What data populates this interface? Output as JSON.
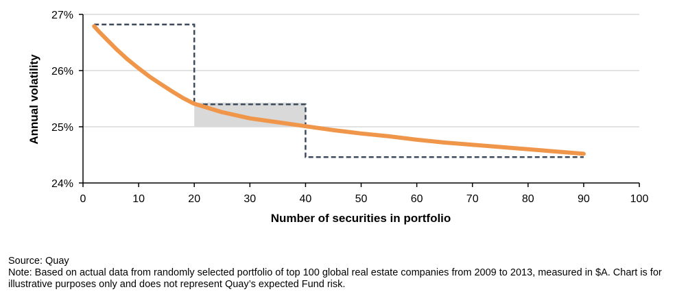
{
  "chart_data": {
    "type": "line",
    "title": "",
    "xlabel": "Number of securities in portfolio",
    "ylabel": "Annual volatility",
    "xlim": [
      0,
      100
    ],
    "ylim": [
      24,
      27
    ],
    "x_ticks": [
      "0",
      "10",
      "20",
      "30",
      "40",
      "50",
      "60",
      "70",
      "80",
      "90",
      "100"
    ],
    "y_ticks": [
      "24%",
      "25%",
      "26%",
      "27%"
    ],
    "grid": "horizontal",
    "colors": {
      "curve": "#f0964a",
      "dashed": "#3d4a5c",
      "band": "#d9d9d9",
      "grid": "#d9d9d9",
      "axis": "#000000"
    },
    "series": [
      {
        "type": "line",
        "style": "solid",
        "x": [
          2,
          3,
          4,
          5,
          6,
          7,
          8,
          10,
          12,
          14,
          16,
          18,
          20,
          25,
          30,
          35,
          40,
          45,
          50,
          55,
          60,
          65,
          70,
          75,
          80,
          85,
          90
        ],
        "y": [
          26.79,
          26.68,
          26.58,
          26.48,
          26.38,
          26.29,
          26.2,
          26.04,
          25.89,
          25.76,
          25.63,
          25.51,
          25.41,
          25.26,
          25.15,
          25.08,
          25.01,
          24.94,
          24.88,
          24.83,
          24.77,
          24.72,
          24.68,
          24.64,
          24.6,
          24.56,
          24.52
        ]
      },
      {
        "type": "step",
        "style": "dashed",
        "x": [
          2,
          20,
          20,
          40,
          40,
          90
        ],
        "y": [
          26.82,
          26.82,
          25.4,
          25.4,
          24.46,
          24.46
        ]
      }
    ],
    "bands": [
      {
        "x": [
          20,
          40
        ],
        "y": [
          25.0,
          25.43
        ]
      }
    ]
  },
  "footer": {
    "source": "Source: Quay",
    "note": "Note: Based on actual data from randomly selected portfolio of top 100 global real estate companies from 2009 to 2013, measured in $A. Chart is for illustrative purposes only and does not represent Quay’s expected Fund risk."
  }
}
